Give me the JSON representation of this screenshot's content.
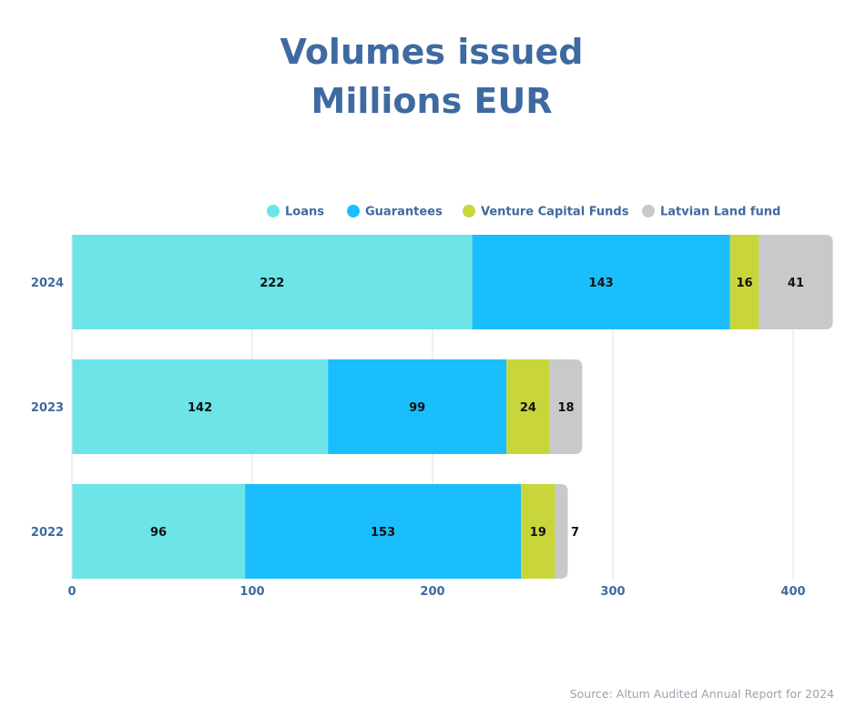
{
  "chart_data": {
    "type": "bar",
    "orientation": "horizontal",
    "stacked": true,
    "title": [
      "Volumes issued",
      "Millions EUR"
    ],
    "categories": [
      "2024",
      "2023",
      "2022"
    ],
    "series": [
      {
        "name": "Loans",
        "color": "#6ce4e8",
        "values": [
          222,
          142,
          96
        ]
      },
      {
        "name": "Guarantees",
        "color": "#1bbefc",
        "values": [
          143,
          99,
          153
        ]
      },
      {
        "name": "Venture Capital Funds",
        "color": "#c8d63c",
        "values": [
          16,
          24,
          19
        ]
      },
      {
        "name": "Latvian Land fund",
        "color": "#c8c9cb",
        "values": [
          41,
          18,
          7
        ]
      }
    ],
    "xticks": [
      "0",
      "100",
      "200",
      "300",
      "400"
    ],
    "xlim": [
      0,
      430
    ],
    "grid": true,
    "legend_position": "top",
    "xlabel": "",
    "ylabel": ""
  },
  "source": "Source: Altum Audited Annual Report for 2024"
}
